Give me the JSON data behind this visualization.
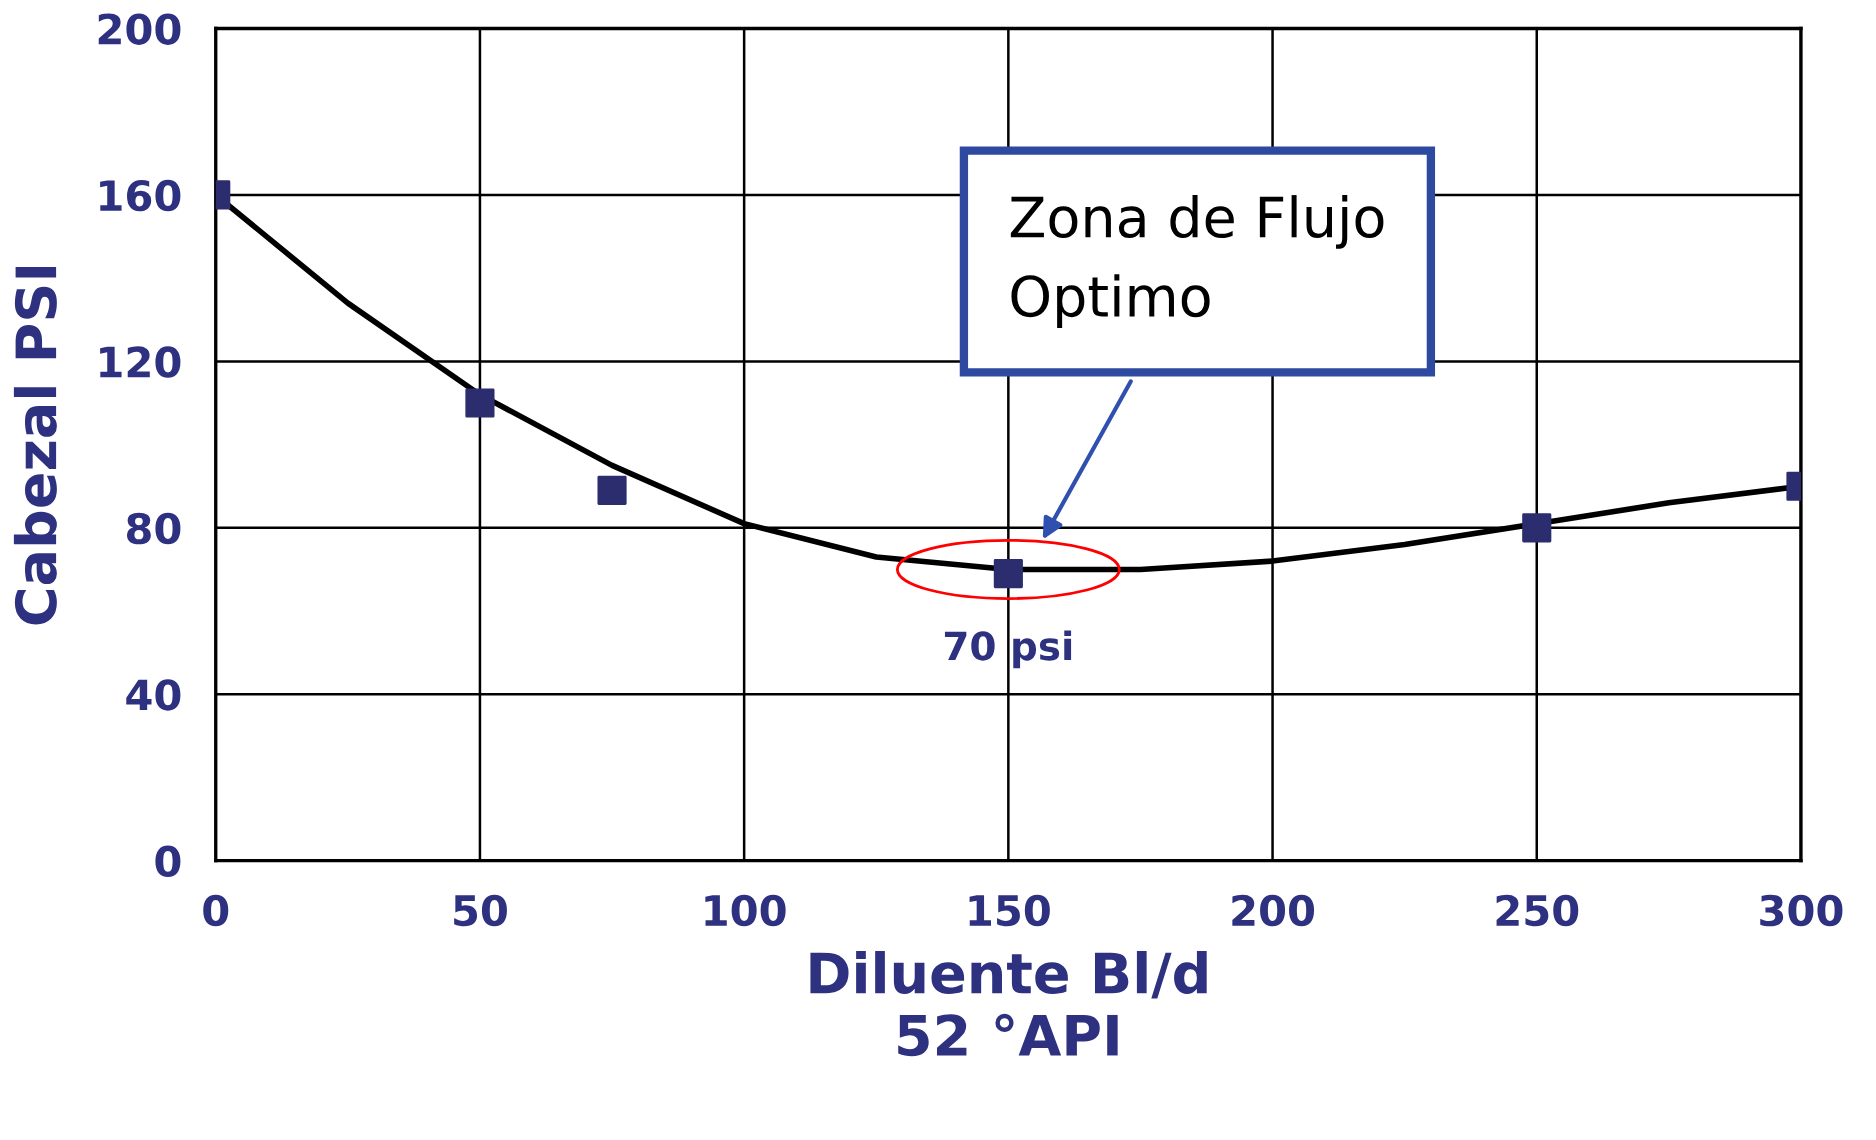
{
  "chart_data": {
    "type": "scatter",
    "xlabel": "Diluente Bl/d\n52 °API",
    "ylabel": "Cabezal PSI",
    "xlim": [
      0,
      300
    ],
    "xticks": [
      0,
      50,
      100,
      150,
      200,
      250,
      300
    ],
    "ylim": [
      0,
      200
    ],
    "yticks": [
      0,
      40,
      80,
      120,
      160,
      200
    ],
    "grid": true,
    "legend": false,
    "marker": "square",
    "series": [
      {
        "color": "#2b2d6e",
        "x": [
          0,
          50,
          75,
          150,
          250,
          300
        ],
        "values": [
          160,
          110,
          89,
          69,
          80,
          90
        ]
      },
      {
        "type": "line",
        "color": "#000000",
        "marker": "none",
        "line_style": "solid",
        "x": [
          0,
          25,
          50,
          75,
          100,
          125,
          150,
          175,
          200,
          225,
          250,
          275,
          300
        ],
        "values": [
          160,
          134,
          112,
          95,
          81,
          73,
          70,
          70,
          72,
          76,
          81,
          86,
          90
        ]
      }
    ],
    "annotations": [
      "Zona de Flujo\nOptimo",
      {
        "text": "70 psi",
        "x": 150,
        "y": 70
      }
    ]
  }
}
